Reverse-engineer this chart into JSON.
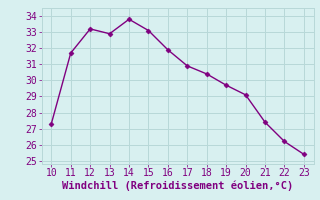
{
  "x": [
    10,
    11,
    12,
    13,
    14,
    15,
    16,
    17,
    18,
    19,
    20,
    21,
    22,
    23
  ],
  "y": [
    27.3,
    31.7,
    33.2,
    32.9,
    33.8,
    33.1,
    31.9,
    30.9,
    30.4,
    29.7,
    29.1,
    27.4,
    26.2,
    25.4
  ],
  "line_color": "#800080",
  "marker": "D",
  "marker_size": 2.5,
  "bg_color": "#d8f0f0",
  "grid_color": "#b8d8d8",
  "xlabel": "Windchill (Refroidissement éolien,°C)",
  "xlabel_color": "#800080",
  "xlabel_fontsize": 7.5,
  "tick_color": "#800080",
  "tick_fontsize": 7,
  "xlim": [
    9.5,
    23.5
  ],
  "ylim": [
    24.8,
    34.5
  ],
  "yticks": [
    25,
    26,
    27,
    28,
    29,
    30,
    31,
    32,
    33,
    34
  ],
  "xticks": [
    10,
    11,
    12,
    13,
    14,
    15,
    16,
    17,
    18,
    19,
    20,
    21,
    22,
    23
  ]
}
